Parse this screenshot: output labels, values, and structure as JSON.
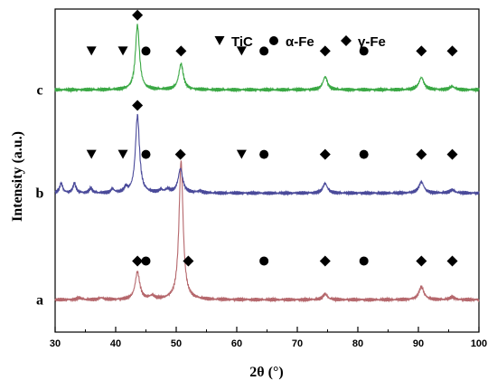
{
  "chart_data": {
    "type": "line",
    "xlabel": "2θ (°)",
    "ylabel": "Intensity (a.u.)",
    "xlim": [
      30,
      100
    ],
    "xticks": [
      30,
      40,
      50,
      60,
      70,
      80,
      90,
      100
    ],
    "grid": false,
    "legend": {
      "placement": "top-right",
      "entries": [
        {
          "label": "TiC",
          "marker": "triangle-down"
        },
        {
          "label": "α-Fe",
          "marker": "circle"
        },
        {
          "label": "γ-Fe",
          "marker": "diamond"
        }
      ]
    },
    "series": [
      {
        "name": "a",
        "color": "#b5676c",
        "baseline": 0.1,
        "peaks": [
          {
            "x": 43.6,
            "h": 0.085,
            "w": 0.45
          },
          {
            "x": 50.8,
            "h": 0.43,
            "w": 0.4
          },
          {
            "x": 74.6,
            "h": 0.018,
            "w": 0.45
          },
          {
            "x": 90.5,
            "h": 0.04,
            "w": 0.5
          },
          {
            "x": 95.6,
            "h": 0.008,
            "w": 0.5
          },
          {
            "x": 46.0,
            "h": 0.01,
            "w": 0.5
          },
          {
            "x": 34.0,
            "h": 0.006,
            "w": 0.4
          },
          {
            "x": 37.6,
            "h": 0.006,
            "w": 0.4
          }
        ],
        "markers": [
          {
            "x": 43.6,
            "marker": "diamond"
          },
          {
            "x": 45.0,
            "marker": "circle"
          },
          {
            "x": 52.0,
            "marker": "diamond"
          },
          {
            "x": 64.5,
            "marker": "circle"
          },
          {
            "x": 74.6,
            "marker": "diamond"
          },
          {
            "x": 81.0,
            "marker": "circle"
          },
          {
            "x": 90.5,
            "marker": "diamond"
          },
          {
            "x": 95.6,
            "marker": "diamond"
          }
        ]
      },
      {
        "name": "b",
        "color": "#4a4a9a",
        "baseline": 0.43,
        "peaks": [
          {
            "x": 31.0,
            "h": 0.03,
            "w": 0.3
          },
          {
            "x": 33.2,
            "h": 0.03,
            "w": 0.3
          },
          {
            "x": 35.9,
            "h": 0.015,
            "w": 0.3
          },
          {
            "x": 39.5,
            "h": 0.012,
            "w": 0.3
          },
          {
            "x": 41.7,
            "h": 0.015,
            "w": 0.3
          },
          {
            "x": 43.6,
            "h": 0.24,
            "w": 0.4
          },
          {
            "x": 47.5,
            "h": 0.008,
            "w": 0.4
          },
          {
            "x": 48.6,
            "h": 0.01,
            "w": 0.4
          },
          {
            "x": 50.7,
            "h": 0.075,
            "w": 0.45
          },
          {
            "x": 53.9,
            "h": 0.006,
            "w": 0.5
          },
          {
            "x": 74.6,
            "h": 0.03,
            "w": 0.45
          },
          {
            "x": 90.5,
            "h": 0.035,
            "w": 0.5
          },
          {
            "x": 95.6,
            "h": 0.01,
            "w": 0.5
          }
        ],
        "markers": [
          {
            "x": 43.6,
            "marker": "diamond"
          },
          {
            "x": 36.0,
            "marker": "triangle-down"
          },
          {
            "x": 41.2,
            "marker": "triangle-down"
          },
          {
            "x": 45.0,
            "marker": "circle"
          },
          {
            "x": 50.7,
            "marker": "diamond"
          },
          {
            "x": 60.8,
            "marker": "triangle-down"
          },
          {
            "x": 64.5,
            "marker": "circle"
          },
          {
            "x": 74.6,
            "marker": "diamond"
          },
          {
            "x": 81.0,
            "marker": "circle"
          },
          {
            "x": 90.5,
            "marker": "diamond"
          },
          {
            "x": 95.6,
            "marker": "diamond"
          }
        ]
      },
      {
        "name": "c",
        "color": "#3aa844",
        "baseline": 0.75,
        "peaks": [
          {
            "x": 43.6,
            "h": 0.2,
            "w": 0.4
          },
          {
            "x": 50.8,
            "h": 0.08,
            "w": 0.45
          },
          {
            "x": 74.6,
            "h": 0.04,
            "w": 0.45
          },
          {
            "x": 90.5,
            "h": 0.038,
            "w": 0.5
          },
          {
            "x": 95.6,
            "h": 0.01,
            "w": 0.5
          }
        ],
        "markers": [
          {
            "x": 43.6,
            "marker": "diamond"
          },
          {
            "x": 36.0,
            "marker": "triangle-down"
          },
          {
            "x": 41.2,
            "marker": "triangle-down"
          },
          {
            "x": 45.0,
            "marker": "circle"
          },
          {
            "x": 50.8,
            "marker": "diamond"
          },
          {
            "x": 60.8,
            "marker": "triangle-down"
          },
          {
            "x": 64.5,
            "marker": "circle"
          },
          {
            "x": 74.6,
            "marker": "diamond"
          },
          {
            "x": 81.0,
            "marker": "circle"
          },
          {
            "x": 90.5,
            "marker": "diamond"
          },
          {
            "x": 95.6,
            "marker": "diamond"
          }
        ]
      }
    ]
  }
}
